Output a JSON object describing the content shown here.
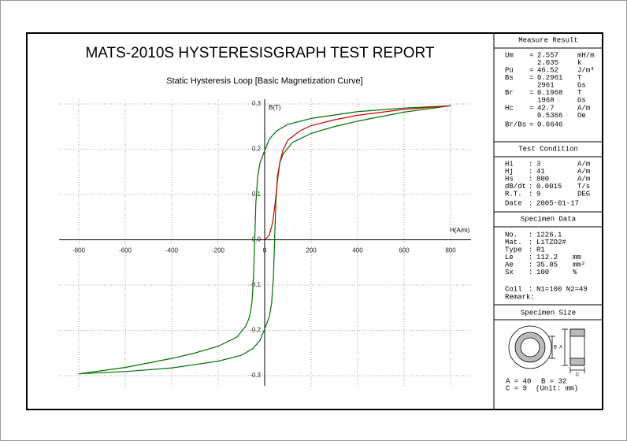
{
  "header": {
    "title": "MATS-2010S HYSTERESISGRAPH TEST REPORT"
  },
  "chart_data": {
    "type": "line",
    "title": "Static Hysteresis Loop [Basic Magnetization Curve]",
    "x_label": "H(A/m)",
    "y_label": "B(T)",
    "xlim": [
      -800,
      800
    ],
    "ylim": [
      -0.3,
      0.3
    ],
    "xticks": [
      -800,
      -600,
      -400,
      -200,
      0,
      200,
      400,
      600,
      800
    ],
    "yticks": [
      0.3,
      0.2,
      0.1,
      {
        "value": 0,
        "label": "0.0"
      },
      -0.1,
      -0.2,
      -0.3
    ],
    "grid": true,
    "series": [
      {
        "color": "#007000",
        "x": [
          800,
          600,
          400,
          200,
          100,
          50,
          20,
          0,
          -20,
          -30,
          -38,
          -42.7,
          -48,
          -55,
          -65,
          -80,
          -120,
          -200,
          -300,
          -400,
          -600,
          -800
        ],
        "values": [
          0.296,
          0.291,
          0.283,
          0.268,
          0.255,
          0.24,
          0.222,
          0.197,
          0.17,
          0.14,
          0.08,
          0,
          -0.08,
          -0.14,
          -0.17,
          -0.19,
          -0.215,
          -0.235,
          -0.25,
          -0.262,
          -0.282,
          -0.296
        ]
      },
      {
        "color": "#007000",
        "x": [
          -800,
          -600,
          -400,
          -200,
          -100,
          -50,
          -20,
          0,
          20,
          30,
          38,
          42.7,
          48,
          55,
          65,
          80,
          120,
          200,
          300,
          400,
          600,
          800
        ],
        "values": [
          -0.296,
          -0.291,
          -0.283,
          -0.268,
          -0.255,
          -0.24,
          -0.222,
          -0.197,
          -0.17,
          -0.14,
          -0.08,
          0,
          0.08,
          0.14,
          0.17,
          0.19,
          0.215,
          0.235,
          0.25,
          0.262,
          0.282,
          0.296
        ]
      },
      {
        "color": "#d00000",
        "x": [
          0,
          20,
          35,
          45,
          55,
          65,
          80,
          100,
          150,
          200,
          300,
          400,
          600,
          800
        ],
        "values": [
          0,
          0.01,
          0.04,
          0.08,
          0.13,
          0.17,
          0.2,
          0.22,
          0.24,
          0.252,
          0.265,
          0.275,
          0.288,
          0.296
        ]
      }
    ]
  },
  "panels": [
    {
      "title": "Measure Result",
      "rows": [
        {
          "label": "Um",
          "sep": "=",
          "value": "2.557",
          "unit": "mH/m"
        },
        {
          "value": "2.035",
          "unit": "k"
        },
        {
          "label": "Pu",
          "sep": "=",
          "value": "46.52",
          "unit": "J/m³"
        },
        {
          "label": "Bs",
          "sep": "=",
          "value": "0.2961",
          "unit": "T"
        },
        {
          "value": "2961",
          "unit": "Gs"
        },
        {
          "label": "Br",
          "sep": "=",
          "value": "0.1968",
          "unit": "T"
        },
        {
          "value": "1968",
          "unit": "Gs"
        },
        {
          "label": "Hc",
          "sep": "=",
          "value": "42.7",
          "unit": "A/m"
        },
        {
          "value": "0.5366",
          "unit": "Oe"
        },
        {
          "label": "Br/Bs",
          "sep": "=",
          "value": "0.6646"
        }
      ]
    },
    {
      "title": "Test Condition",
      "rows": [
        {
          "label": "Hi",
          "sep": ":",
          "value": "3",
          "unit": "A/m"
        },
        {
          "label": "Hj",
          "sep": ":",
          "value": "41",
          "unit": "A/m"
        },
        {
          "label": "Hs",
          "sep": ":",
          "value": "800",
          "unit": "A/m"
        },
        {
          "label": "dB/dt",
          "sep": ":",
          "value": "0.0015",
          "unit": "T/s"
        },
        {
          "label": "R.T.",
          "sep": ":",
          "value": "9",
          "unit": "DEG"
        },
        {
          "label": "Date",
          "sep": ":",
          "value": "2005-01-17"
        }
      ]
    },
    {
      "title": "Specimen Data",
      "rows": [
        {
          "label": "No.",
          "sep": ":",
          "value": "1226.1"
        },
        {
          "label": "Mat.",
          "sep": ":",
          "value": "LiTZO2#"
        },
        {
          "label": "Type",
          "sep": ":",
          "value": "R1"
        },
        {
          "label": "Le",
          "sep": ":",
          "value": "112.2",
          "unit": "mm"
        },
        {
          "label": "Ae",
          "sep": ":",
          "value": "35.85",
          "unit": "mm²"
        },
        {
          "label": "Sx",
          "sep": ":",
          "value": "100",
          "unit": "%"
        },
        {
          "label": "Coil",
          "sep": ":",
          "value": "N1=100 N2=49"
        },
        {
          "label": "Remark:"
        }
      ]
    },
    {
      "title": "Specimen Size",
      "diagram": {
        "b": "B",
        "a": "A",
        "c": "C"
      },
      "rows": [
        "A = 40",
        "B = 32",
        "C = 9",
        "(Unit: mm)"
      ]
    }
  ]
}
